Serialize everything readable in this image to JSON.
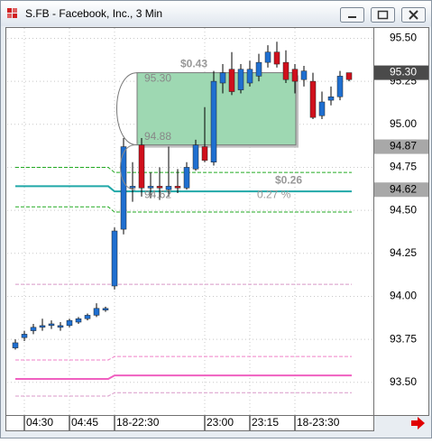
{
  "window": {
    "title": "S.FB - Facebook, Inc., 3 Min"
  },
  "chart_data": {
    "type": "candlestick",
    "open": [
      93.7,
      93.76,
      93.8,
      93.82,
      93.83,
      93.82,
      93.83,
      93.85,
      93.87,
      93.89,
      93.92,
      94.06,
      94.39,
      94.63,
      94.88,
      94.63,
      94.64,
      94.62,
      94.64,
      94.63,
      94.74,
      94.87,
      94.78,
      95.24,
      95.32,
      95.2,
      95.24,
      95.28,
      95.36,
      95.42,
      95.36,
      95.32,
      95.26,
      95.25,
      95.05,
      95.14,
      95.16,
      95.3
    ],
    "high": [
      93.75,
      93.8,
      93.84,
      93.87,
      93.86,
      93.85,
      93.87,
      93.88,
      93.9,
      93.96,
      93.94,
      94.4,
      94.92,
      94.78,
      94.92,
      94.72,
      94.75,
      94.87,
      94.74,
      94.78,
      94.91,
      95.1,
      95.31,
      95.35,
      95.42,
      95.35,
      95.37,
      95.41,
      95.46,
      95.48,
      95.43,
      95.35,
      95.34,
      95.3,
      95.19,
      95.22,
      95.31,
      95.3
    ],
    "low": [
      93.69,
      93.74,
      93.78,
      93.8,
      93.81,
      93.8,
      93.82,
      93.84,
      93.86,
      93.88,
      93.91,
      94.04,
      94.36,
      94.55,
      94.58,
      94.57,
      94.56,
      94.58,
      94.6,
      94.62,
      94.73,
      94.78,
      94.76,
      95.18,
      95.17,
      95.18,
      95.22,
      95.25,
      95.33,
      95.33,
      95.24,
      95.18,
      95.22,
      95.03,
      95.03,
      95.11,
      95.14,
      95.25
    ],
    "close": [
      93.73,
      93.78,
      93.82,
      93.83,
      93.84,
      93.83,
      93.86,
      93.87,
      93.89,
      93.93,
      93.93,
      94.38,
      94.87,
      94.64,
      94.63,
      94.64,
      94.63,
      94.64,
      94.63,
      94.75,
      94.88,
      94.79,
      95.25,
      95.3,
      95.19,
      95.32,
      95.32,
      95.36,
      95.42,
      95.35,
      95.26,
      95.25,
      95.31,
      95.04,
      95.13,
      95.16,
      95.28,
      95.26
    ],
    "up_color": "#1f6fd0",
    "down_color": "#d0101c",
    "xlim": [
      -0.9,
      39.6
    ],
    "ylim": [
      93.31,
      95.56
    ],
    "xticks": [
      {
        "value": 1,
        "label": "04:30"
      },
      {
        "value": 6,
        "label": "04:45"
      },
      {
        "value": 11,
        "label": "18-22:30"
      },
      {
        "value": 21,
        "label": "23:00"
      },
      {
        "value": 26,
        "label": "23:15"
      },
      {
        "value": 31,
        "label": "18-23:30"
      }
    ],
    "yticks": [
      {
        "value": 95.5,
        "label": "95.50"
      },
      {
        "value": 95.25,
        "label": "95.25"
      },
      {
        "value": 95,
        "label": "95.00"
      },
      {
        "value": 94.75,
        "label": "94.75"
      },
      {
        "value": 94.5,
        "label": "94.50"
      },
      {
        "value": 94.25,
        "label": "94.25"
      },
      {
        "value": 94,
        "label": "94.00"
      },
      {
        "value": 93.75,
        "label": "93.75"
      },
      {
        "value": 93.5,
        "label": "93.50"
      }
    ],
    "grid": true,
    "price_markers": [
      {
        "value": 95.3,
        "label": "95.30",
        "color": "#4a4a4a",
        "text_color": "#ffffff"
      },
      {
        "value": 94.87,
        "label": "94.87",
        "color": "#a8a8a8",
        "text_color": "#000000"
      },
      {
        "value": 94.62,
        "label": "94.62",
        "color": "#a8a8a8",
        "text_color": "#000000"
      }
    ],
    "levels": [
      {
        "values": [
          94.75,
          94.72
        ],
        "color": "#22aa22",
        "dashed": true
      },
      {
        "values": [
          94.52,
          94.49
        ],
        "color": "#22aa22",
        "dashed": true
      },
      {
        "values": [
          94.64,
          94.61
        ],
        "color": "#20a8a8",
        "dashed": false
      },
      {
        "values": [
          94.07,
          94.07
        ],
        "color": "#d898c8",
        "dashed": true
      },
      {
        "values": [
          93.63,
          93.65
        ],
        "color": "#f080c8",
        "dashed": true
      },
      {
        "values": [
          93.52,
          93.54
        ],
        "color": "#f060c0",
        "dashed": false
      },
      {
        "values": [
          93.42,
          93.44
        ],
        "color": "#d898c8",
        "dashed": true
      }
    ],
    "measure": {
      "x0": 13.5,
      "x1": 31.1,
      "top": {
        "value": 95.3,
        "label": "95.30"
      },
      "bottom": {
        "value": 94.88,
        "label": "94.88"
      },
      "change": {
        "value": 0.43,
        "label": "$0.43"
      }
    },
    "line_note": {
      "price": {
        "value": 94.62,
        "label": "94.62"
      },
      "change": {
        "value": 0.26,
        "label": "$0.26"
      },
      "percent": {
        "value": 0.27,
        "label": "0.27 %"
      }
    }
  }
}
